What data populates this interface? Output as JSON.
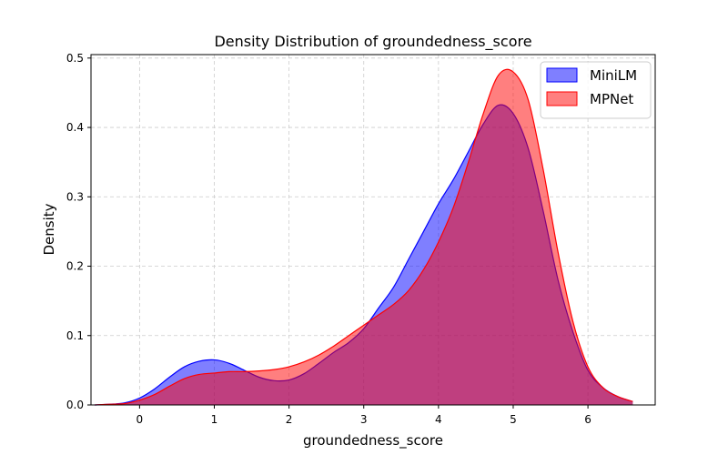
{
  "chart_data": {
    "type": "area",
    "title": "Density Distribution of groundedness_score",
    "xlabel": "groundedness_score",
    "ylabel": "Density",
    "xlim": [
      -0.65,
      6.9
    ],
    "ylim": [
      0,
      0.505
    ],
    "xticks": [
      0,
      1,
      2,
      3,
      4,
      5,
      6
    ],
    "yticks": [
      0.0,
      0.1,
      0.2,
      0.3,
      0.4,
      0.5
    ],
    "xtick_labels": [
      "0",
      "1",
      "2",
      "3",
      "4",
      "5",
      "6"
    ],
    "ytick_labels": [
      "0.0",
      "0.1",
      "0.2",
      "0.3",
      "0.4",
      "0.5"
    ],
    "grid": true,
    "legend_position": "top-right",
    "x": [
      -0.6,
      -0.4,
      -0.2,
      0.0,
      0.2,
      0.4,
      0.6,
      0.8,
      1.0,
      1.2,
      1.4,
      1.6,
      1.8,
      2.0,
      2.2,
      2.4,
      2.6,
      2.8,
      3.0,
      3.2,
      3.4,
      3.6,
      3.8,
      4.0,
      4.2,
      4.4,
      4.6,
      4.8,
      5.0,
      5.2,
      5.4,
      5.6,
      5.8,
      6.0,
      6.2,
      6.4,
      6.6
    ],
    "series": [
      {
        "name": "MiniLM",
        "color": "#0000ff",
        "fill": "rgba(0,0,255,0.5)",
        "values": [
          0.0,
          0.001,
          0.003,
          0.01,
          0.023,
          0.04,
          0.055,
          0.063,
          0.065,
          0.06,
          0.05,
          0.04,
          0.035,
          0.036,
          0.045,
          0.06,
          0.076,
          0.09,
          0.11,
          0.14,
          0.17,
          0.21,
          0.25,
          0.29,
          0.325,
          0.365,
          0.405,
          0.432,
          0.42,
          0.37,
          0.28,
          0.18,
          0.105,
          0.05,
          0.025,
          0.012,
          0.005
        ]
      },
      {
        "name": "MPNet",
        "color": "#ff0000",
        "fill": "rgba(255,0,0,0.5)",
        "values": [
          0.0,
          0.001,
          0.002,
          0.007,
          0.015,
          0.027,
          0.038,
          0.044,
          0.046,
          0.048,
          0.048,
          0.049,
          0.051,
          0.055,
          0.062,
          0.072,
          0.085,
          0.1,
          0.115,
          0.13,
          0.145,
          0.165,
          0.195,
          0.235,
          0.285,
          0.35,
          0.42,
          0.475,
          0.48,
          0.44,
          0.34,
          0.22,
          0.12,
          0.055,
          0.025,
          0.012,
          0.005
        ]
      }
    ]
  }
}
